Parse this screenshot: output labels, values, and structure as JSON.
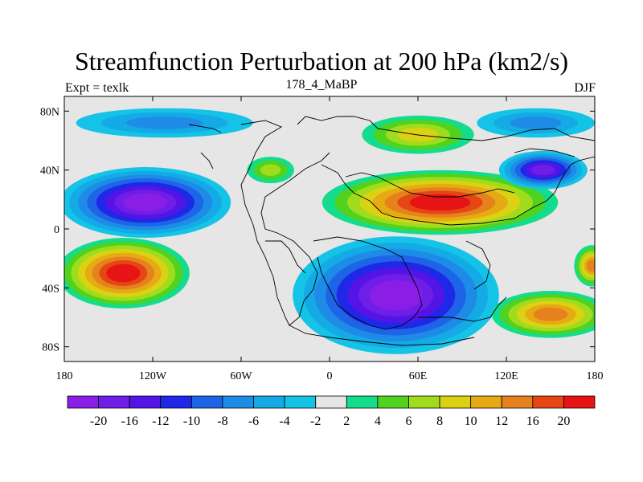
{
  "title": "Streamfunction Perturbation at 200 hPa (km2/s)",
  "left_string": "Expt = texlk",
  "center_string": "178_4_MaBP",
  "right_string": "DJF",
  "map": {
    "lon_range": [
      -180,
      180
    ],
    "lat_range": [
      -90,
      90
    ],
    "x_ticks": [
      {
        "lon": -180,
        "label": "180"
      },
      {
        "lon": -120,
        "label": "120W"
      },
      {
        "lon": -60,
        "label": "60W"
      },
      {
        "lon": 0,
        "label": "0"
      },
      {
        "lon": 60,
        "label": "60E"
      },
      {
        "lon": 120,
        "label": "120E"
      },
      {
        "lon": 180,
        "label": "180"
      }
    ],
    "y_ticks": [
      {
        "lat": 80,
        "label": "80N"
      },
      {
        "lat": 40,
        "label": "40N"
      },
      {
        "lat": 0,
        "label": "0"
      },
      {
        "lat": -40,
        "label": "40S"
      },
      {
        "lat": -80,
        "label": "80S"
      }
    ],
    "background_color": "#e6e6e6"
  },
  "colorbar": {
    "colors": [
      "#8a1ee6",
      "#6e1ee6",
      "#5514e6",
      "#1e28e6",
      "#1e64e6",
      "#1e8ce6",
      "#14aae6",
      "#14c3e6",
      "#e6e6e6",
      "#14dc8c",
      "#50d21e",
      "#a0dc1e",
      "#dcd214",
      "#e6aa14",
      "#e6821e",
      "#e64614",
      "#e61414"
    ],
    "labels": [
      "-20",
      "-16",
      "-12",
      "-10",
      "-8",
      "-6",
      "-4",
      "-2",
      "2",
      "4",
      "6",
      "8",
      "10",
      "12",
      "16",
      "20"
    ]
  },
  "anomalies": [
    {
      "lon": -125,
      "lat": 18,
      "rx_deg": 58,
      "ry_deg": 24,
      "value": -20
    },
    {
      "lon": 45,
      "lat": -45,
      "rx_deg": 70,
      "ry_deg": 40,
      "value": -20
    },
    {
      "lon": 75,
      "lat": 18,
      "rx_deg": 80,
      "ry_deg": 22,
      "value": 20
    },
    {
      "lon": -140,
      "lat": -30,
      "rx_deg": 45,
      "ry_deg": 24,
      "value": 20
    },
    {
      "lon": 145,
      "lat": 40,
      "rx_deg": 30,
      "ry_deg": 13,
      "value": -16
    },
    {
      "lon": 60,
      "lat": 64,
      "rx_deg": 38,
      "ry_deg": 13,
      "value": 8
    },
    {
      "lon": 150,
      "lat": -58,
      "rx_deg": 40,
      "ry_deg": 16,
      "value": 14
    },
    {
      "lon": 178,
      "lat": -25,
      "rx_deg": 12,
      "ry_deg": 14,
      "value": 12
    },
    {
      "lon": -40,
      "lat": 40,
      "rx_deg": 16,
      "ry_deg": 9,
      "value": 6
    },
    {
      "lon": -112,
      "lat": 72,
      "rx_deg": 60,
      "ry_deg": 10,
      "value": -6
    },
    {
      "lon": 140,
      "lat": 72,
      "rx_deg": 40,
      "ry_deg": 10,
      "value": -6
    }
  ]
}
